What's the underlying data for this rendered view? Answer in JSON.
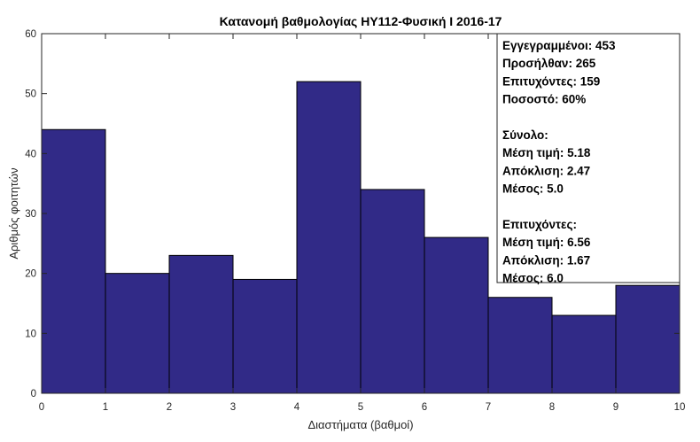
{
  "chart_data": {
    "type": "bar",
    "title": "Κατανομή βαθμολογίας ΗΥ112-Φυσική Ι 2016-17",
    "xlabel": "Διαστήματα (βαθμοί)",
    "ylabel": "Αριθμός φοιτητών",
    "xlim": [
      0,
      10
    ],
    "ylim": [
      0,
      60
    ],
    "xticks": [
      "0",
      "1",
      "2",
      "3",
      "4",
      "5",
      "6",
      "7",
      "8",
      "9",
      "10"
    ],
    "yticks": [
      "0",
      "10",
      "20",
      "30",
      "40",
      "50",
      "60"
    ],
    "bins": [
      [
        0,
        1
      ],
      [
        1,
        2
      ],
      [
        2,
        3
      ],
      [
        3,
        4
      ],
      [
        4,
        5
      ],
      [
        5,
        6
      ],
      [
        6,
        7
      ],
      [
        7,
        8
      ],
      [
        8,
        9
      ],
      [
        9,
        10
      ]
    ],
    "values": [
      44,
      20,
      23,
      19,
      52,
      34,
      26,
      16,
      13,
      18
    ],
    "bar_color": "#312a87",
    "grid": false,
    "legend_position": "top-right"
  },
  "stats_box": {
    "lines": [
      "Εγγεγραμμένοι: 453",
      "Προσήλθαν: 265",
      "Επιτυχόντες: 159",
      "Ποσοστό: 60%",
      "",
      "Σύνολο:",
      "Μέση τιμή: 5.18",
      "Απόκλιση: 2.47",
      "Μέσος: 5.0",
      "",
      "Επιτυχόντες:",
      "Μέση τιμή: 6.56",
      "Απόκλιση: 1.67",
      "Μέσος: 6.0"
    ]
  }
}
